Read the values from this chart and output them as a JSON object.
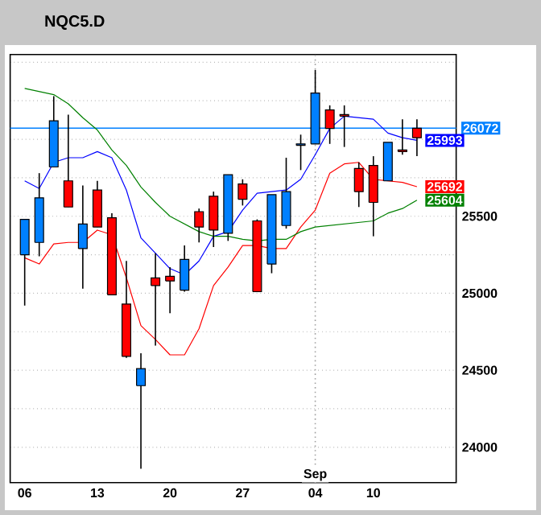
{
  "chart_data": {
    "type": "candlestick",
    "title": "NQC5.D",
    "categories": [
      "06",
      null,
      null,
      null,
      null,
      "13",
      null,
      null,
      null,
      null,
      "20",
      null,
      null,
      null,
      null,
      "27",
      null,
      null,
      null,
      null,
      "04",
      null,
      null,
      null,
      "10",
      null,
      null,
      null
    ],
    "ohlc": [
      [
        25480,
        25480,
        24920,
        25250
      ],
      [
        25620,
        25780,
        25240,
        25330
      ],
      [
        26120,
        26280,
        25820,
        25820
      ],
      [
        25560,
        26160,
        25560,
        25730
      ],
      [
        25450,
        25700,
        25030,
        25290
      ],
      [
        25430,
        25730,
        25430,
        25670
      ],
      [
        24990,
        25520,
        24990,
        25490
      ],
      [
        24590,
        25210,
        24580,
        24930
      ],
      [
        24510,
        24610,
        23860,
        24400
      ],
      [
        25050,
        25260,
        24660,
        25100
      ],
      [
        25080,
        25170,
        24870,
        25110
      ],
      [
        25220,
        25310,
        25010,
        25020
      ],
      [
        25430,
        25550,
        25330,
        25530
      ],
      [
        25410,
        25660,
        25300,
        25630
      ],
      [
        25770,
        25770,
        25340,
        25390
      ],
      [
        25610,
        25740,
        25570,
        25710
      ],
      [
        25010,
        25480,
        25010,
        25470
      ],
      [
        25640,
        25640,
        25130,
        25190
      ],
      [
        25660,
        25880,
        25420,
        25440
      ],
      [
        25970,
        26030,
        25800,
        25960
      ],
      [
        26300,
        26450,
        25970,
        25970
      ],
      [
        26070,
        26220,
        25970,
        26190
      ],
      [
        26150,
        26220,
        25950,
        26160
      ],
      [
        25660,
        25850,
        25560,
        25810
      ],
      [
        25590,
        25890,
        25370,
        25830
      ],
      [
        25980,
        25980,
        25730,
        25730
      ],
      [
        25920,
        26130,
        25900,
        25930
      ],
      [
        26010,
        26130,
        25890,
        26072
      ]
    ],
    "colors": [
      "#0080ff",
      "#0080ff",
      "#0080ff",
      "#ff0000",
      "#0080ff",
      "#ff0000",
      "#ff0000",
      "#ff0000",
      "#0080ff",
      "#ff0000",
      "#ff0000",
      "#0080ff",
      "#ff0000",
      "#ff0000",
      "#0080ff",
      "#ff0000",
      "#ff0000",
      "#0080ff",
      "#0080ff",
      "#0080ff",
      "#0080ff",
      "#ff0000",
      "#ff0000",
      "#ff0000",
      "#ff0000",
      "#0080ff",
      "#ff0000",
      "#ff0000"
    ],
    "series": [
      {
        "type": "line",
        "color": "#0000ff",
        "values": [
          25730,
          25680,
          25850,
          25880,
          25880,
          25920,
          25880,
          25670,
          25360,
          25260,
          25160,
          25120,
          25210,
          25370,
          25400,
          25540,
          25650,
          25660,
          25670,
          25740,
          25900,
          26070,
          26150,
          26140,
          26130,
          26040,
          26010,
          25993
        ],
        "value_labels": [
          null,
          null,
          null,
          null,
          null,
          null,
          null,
          null,
          null,
          null,
          null,
          null,
          null,
          null,
          null,
          null,
          null,
          null,
          null,
          null,
          null,
          null,
          null,
          null,
          null,
          null,
          null,
          "25993"
        ]
      },
      {
        "type": "line",
        "color": "#ff0000",
        "values": [
          25230,
          25190,
          25320,
          25330,
          25330,
          25410,
          25380,
          25100,
          24790,
          24700,
          24600,
          24600,
          24770,
          25050,
          25170,
          25310,
          25310,
          25290,
          25290,
          25430,
          25540,
          25780,
          25840,
          25850,
          25740,
          25730,
          25720,
          25692
        ],
        "value_labels": [
          null,
          null,
          null,
          null,
          null,
          null,
          null,
          null,
          null,
          null,
          null,
          null,
          null,
          null,
          null,
          null,
          null,
          null,
          null,
          null,
          null,
          null,
          null,
          null,
          null,
          null,
          null,
          "25692"
        ]
      },
      {
        "type": "line",
        "color": "#008000",
        "values": [
          26330,
          26310,
          26290,
          26230,
          26140,
          26060,
          25930,
          25830,
          25690,
          25590,
          25500,
          25450,
          25400,
          25370,
          25370,
          25350,
          25340,
          25350,
          25350,
          25400,
          25430,
          25440,
          25450,
          25460,
          25470,
          25520,
          25550,
          25604
        ],
        "value_labels": [
          null,
          null,
          null,
          null,
          null,
          null,
          null,
          null,
          null,
          null,
          null,
          null,
          null,
          null,
          null,
          null,
          null,
          null,
          null,
          null,
          null,
          null,
          null,
          null,
          null,
          null,
          null,
          "25604"
        ]
      }
    ],
    "ylim": [
      23770,
      26550
    ],
    "yticks": [
      24000,
      {
        "value": 24250,
        "label": null
      },
      24500,
      {
        "value": 24750,
        "label": null
      },
      25000,
      {
        "value": 25250,
        "label": null
      },
      25500,
      {
        "value": 25750,
        "label": null
      },
      {
        "value": 26000,
        "label": null
      },
      {
        "value": 26250,
        "label": null
      },
      {
        "value": 26500,
        "label": null
      }
    ],
    "grid": "y",
    "ref_lines": [
      {
        "axis": "y",
        "value": 26072,
        "label": "26072",
        "color": "#0080ff"
      },
      {
        "axis": "x",
        "value": "04",
        "color": "#a0a0a0",
        "line_style": "dotted"
      }
    ],
    "annotations": [
      {
        "text": "Sep",
        "x": "04"
      }
    ]
  }
}
